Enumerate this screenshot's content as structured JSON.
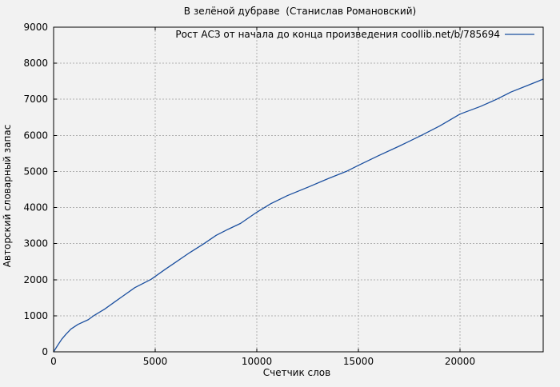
{
  "chart_data": {
    "type": "line",
    "title": "В зелёной дубраве  (Станислав Романовский)",
    "xlabel": "Счетчик слов",
    "ylabel": "Авторский словарный запас",
    "xlim": [
      0,
      24094
    ],
    "ylim": [
      0,
      9000
    ],
    "xticks": [
      0,
      5000,
      10000,
      15000,
      20000
    ],
    "yticks": [
      0,
      1000,
      2000,
      3000,
      4000,
      5000,
      6000,
      7000,
      8000,
      9000
    ],
    "grid": true,
    "legend_position": "top-right-inside",
    "background_color": "#f2f2f2",
    "grid_color": "#b0b0b0",
    "axis_color": "#000000",
    "text_color": "#000000",
    "series": [
      {
        "name": "Рост АСЗ от начала до конца произведения coollib.net/b/785694",
        "color": "#1b4f9f",
        "points": [
          [
            0,
            0
          ],
          [
            200,
            180
          ],
          [
            400,
            350
          ],
          [
            600,
            480
          ],
          [
            850,
            630
          ],
          [
            1200,
            760
          ],
          [
            1700,
            890
          ],
          [
            2000,
            1010
          ],
          [
            2500,
            1180
          ],
          [
            3000,
            1380
          ],
          [
            3350,
            1520
          ],
          [
            4000,
            1780
          ],
          [
            4800,
            2010
          ],
          [
            5500,
            2290
          ],
          [
            6000,
            2480
          ],
          [
            6700,
            2750
          ],
          [
            7400,
            3000
          ],
          [
            8000,
            3230
          ],
          [
            8600,
            3400
          ],
          [
            9200,
            3560
          ],
          [
            10000,
            3870
          ],
          [
            10700,
            4110
          ],
          [
            11500,
            4330
          ],
          [
            12500,
            4560
          ],
          [
            13500,
            4800
          ],
          [
            14400,
            5000
          ],
          [
            15000,
            5170
          ],
          [
            16000,
            5440
          ],
          [
            17000,
            5700
          ],
          [
            18100,
            6000
          ],
          [
            19000,
            6260
          ],
          [
            20000,
            6590
          ],
          [
            21000,
            6800
          ],
          [
            21800,
            7000
          ],
          [
            22500,
            7200
          ],
          [
            23300,
            7380
          ],
          [
            24094,
            7560
          ]
        ]
      }
    ]
  }
}
